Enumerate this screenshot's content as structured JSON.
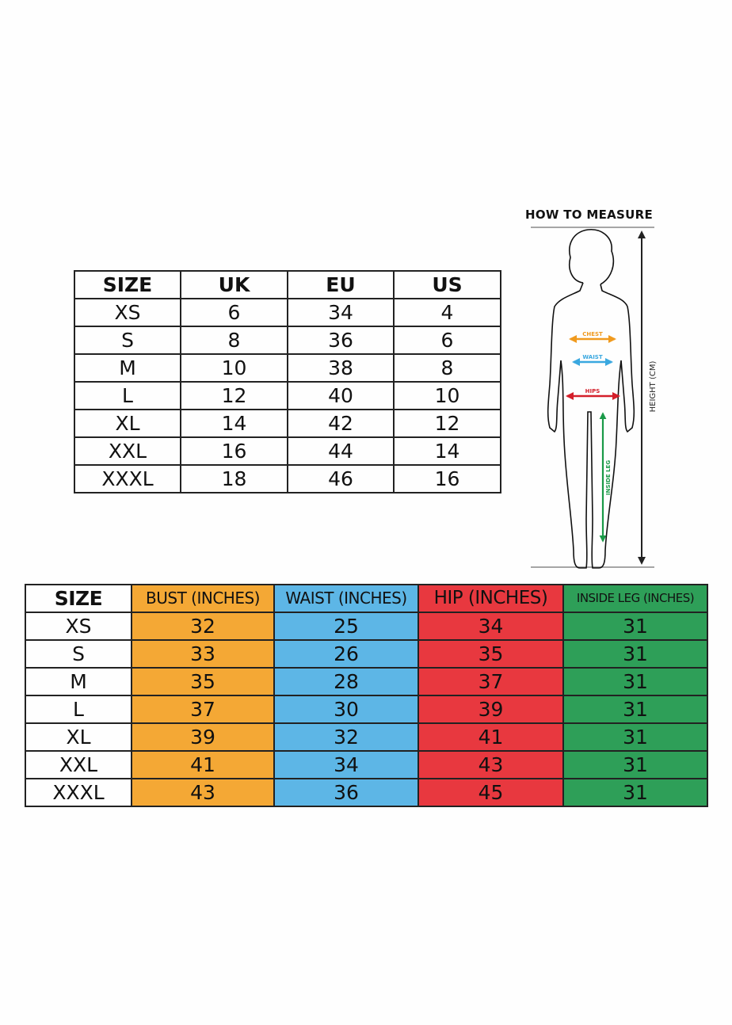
{
  "conversion_table": {
    "headers": [
      "SIZE",
      "UK",
      "EU",
      "US"
    ],
    "rows": [
      [
        "XS",
        "6",
        "34",
        "4"
      ],
      [
        "S",
        "8",
        "36",
        "6"
      ],
      [
        "M",
        "10",
        "38",
        "8"
      ],
      [
        "L",
        "12",
        "40",
        "10"
      ],
      [
        "XL",
        "14",
        "42",
        "12"
      ],
      [
        "XXL",
        "16",
        "44",
        "14"
      ],
      [
        "XXXL",
        "18",
        "46",
        "16"
      ]
    ]
  },
  "measurement_table": {
    "headers": [
      "SIZE",
      "BUST (INCHES)",
      "WAIST (INCHES)",
      "HIP (INCHES)",
      "INSIDE LEG (INCHES)"
    ],
    "colors": {
      "bust": "#f4a835",
      "waist": "#5db6e6",
      "hip": "#e8383f",
      "inside_leg": "#2e9f58"
    },
    "rows": [
      [
        "XS",
        "32",
        "25",
        "34",
        "31"
      ],
      [
        "S",
        "33",
        "26",
        "35",
        "31"
      ],
      [
        "M",
        "35",
        "28",
        "37",
        "31"
      ],
      [
        "L",
        "37",
        "30",
        "39",
        "31"
      ],
      [
        "XL",
        "39",
        "32",
        "41",
        "31"
      ],
      [
        "XXL",
        "41",
        "34",
        "43",
        "31"
      ],
      [
        "XXXL",
        "43",
        "36",
        "45",
        "31"
      ]
    ]
  },
  "how_to_measure": {
    "title": "HOW TO MEASURE",
    "labels": {
      "chest": "CHEST",
      "waist": "WAIST",
      "hips": "HIPS",
      "inside_leg": "INSIDE LEG",
      "height": "HEIGHT (CM)"
    }
  }
}
